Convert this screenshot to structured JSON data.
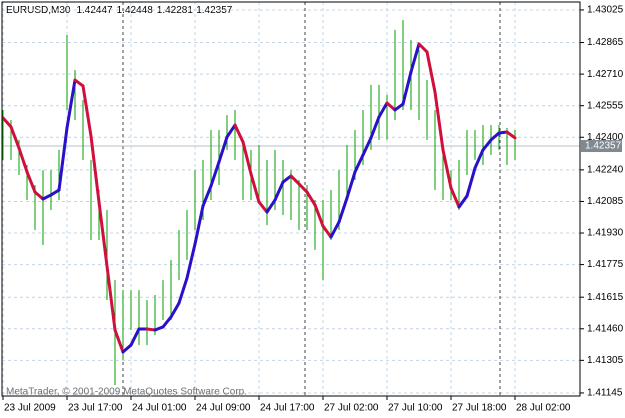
{
  "chart_data": {
    "type": "price-bars",
    "symbol": "EURUSD,M30",
    "ohlc": [
      1.42447,
      1.42448,
      1.42281,
      1.42357
    ],
    "footer": "MetaTrader, © 2001-2009 MetaQuotes Software Corp.",
    "current_price": 1.42357,
    "x": [
      0,
      2,
      4,
      6,
      8,
      10,
      12,
      14,
      16,
      18,
      20,
      22,
      24,
      26,
      28,
      30,
      32,
      34,
      36,
      38,
      40,
      42,
      44,
      46,
      48,
      50,
      52,
      54,
      56,
      58,
      60,
      62,
      64,
      66,
      68,
      70,
      72,
      74,
      76,
      78,
      80,
      82,
      84,
      86,
      88,
      90,
      92,
      94,
      96,
      98,
      100,
      102,
      104,
      106,
      108,
      110,
      112,
      114,
      116,
      118,
      120,
      122,
      124,
      126,
      128
    ],
    "high": [
      1.42534,
      1.42485,
      1.42387,
      1.42264,
      1.42166,
      1.42239,
      1.42239,
      1.42338,
      1.42902,
      1.4273,
      1.42583,
      1.42289,
      1.42141,
      1.42043,
      1.41699,
      1.4165,
      1.4165,
      1.4165,
      1.41601,
      1.41626,
      1.41699,
      1.41798,
      1.41945,
      1.42043,
      1.42239,
      1.42289,
      1.42436,
      1.42436,
      1.42509,
      1.42534,
      1.42387,
      1.42338,
      1.42362,
      1.42289,
      1.42338,
      1.42289,
      1.42239,
      1.4219,
      1.42166,
      1.42092,
      1.42092,
      1.42141,
      1.42239,
      1.42362,
      1.42436,
      1.42534,
      1.42657,
      1.42657,
      1.42608,
      1.42927,
      1.42976,
      1.42878,
      1.42829,
      1.42681,
      1.42534,
      1.42338,
      1.42239,
      1.42289,
      1.42436,
      1.42436,
      1.4246,
      1.4246,
      1.4246,
      1.42446,
      1.42436
    ],
    "low": [
      1.42289,
      1.42289,
      1.42215,
      1.42092,
      1.41945,
      1.41871,
      1.42043,
      1.42092,
      1.42534,
      1.42485,
      1.42289,
      1.41896,
      1.41896,
      1.41601,
      1.41184,
      1.41307,
      1.41454,
      1.4138,
      1.4138,
      1.41429,
      1.41503,
      1.41503,
      1.41699,
      1.41798,
      1.41945,
      1.41994,
      1.42092,
      1.42166,
      1.42338,
      1.42289,
      1.42092,
      1.42092,
      1.42092,
      1.41969,
      1.42043,
      1.42018,
      1.41994,
      1.41945,
      1.41945,
      1.41847,
      1.41699,
      1.41896,
      1.41945,
      1.42092,
      1.4219,
      1.42264,
      1.42338,
      1.42387,
      1.42387,
      1.42485,
      1.42534,
      1.42534,
      1.42485,
      1.42387,
      1.42141,
      1.42092,
      1.42092,
      1.42043,
      1.42215,
      1.42289,
      1.42264,
      1.42313,
      1.42338,
      1.42264,
      1.42289
    ],
    "bar_color": "#00a000",
    "ma": [
      1.42495,
      1.42451,
      1.42347,
      1.4223,
      1.42131,
      1.42097,
      1.42117,
      1.42141,
      1.42446,
      1.42681,
      1.42652,
      1.42406,
      1.42082,
      1.41768,
      1.41454,
      1.41346,
      1.4138,
      1.41459,
      1.41459,
      1.41454,
      1.41469,
      1.41518,
      1.41586,
      1.41709,
      1.41876,
      1.42063,
      1.42161,
      1.42279,
      1.42401,
      1.4246,
      1.42377,
      1.4222,
      1.42082,
      1.42033,
      1.42092,
      1.4218,
      1.4221,
      1.42171,
      1.42131,
      1.42068,
      1.41964,
      1.4191,
      1.41984,
      1.42102,
      1.4223,
      1.42313,
      1.42397,
      1.425,
      1.42568,
      1.42534,
      1.42563,
      1.42721,
      1.42858,
      1.42819,
      1.42622,
      1.42338,
      1.42151,
      1.42058,
      1.42112,
      1.42249,
      1.42338,
      1.42387,
      1.42421,
      1.42426,
      1.42397
    ],
    "ma_up_color": "#2a10c8",
    "ma_down_color": "#d0103c",
    "xlim": [
      -0.25,
      144.25
    ],
    "ylim": [
      1.4113,
      1.43064
    ],
    "yticks": [
      1.43025,
      1.42865,
      {
        "value": 1.4271,
        "label": "1.42710"
      },
      1.42555,
      {
        "value": 1.424,
        "label": "1.42400"
      },
      {
        "value": 1.4224,
        "label": "1.42240"
      },
      1.42085,
      {
        "value": 1.4193,
        "label": "1.41930"
      },
      1.41775,
      1.41615,
      {
        "value": 1.4146,
        "label": "1.41460"
      },
      1.41305,
      1.41145
    ],
    "xticks": [
      {
        "value": 0,
        "label": "23 Jul 2009"
      },
      {
        "value": 16,
        "label": "23 Jul 17:00"
      },
      {
        "value": 32,
        "label": "24 Jul 01:00"
      },
      {
        "value": 48,
        "label": "24 Jul 09:00"
      },
      {
        "value": 64,
        "label": "24 Jul 17:00"
      },
      {
        "value": 80,
        "label": "27 Jul 02:00"
      },
      {
        "value": 96,
        "label": "27 Jul 10:00"
      },
      {
        "value": 112,
        "label": "27 Jul 18:00"
      },
      {
        "value": 128,
        "label": "28 Jul 02:00"
      }
    ],
    "period_separators": [
      30,
      75.5,
      124.25
    ],
    "grid": true
  }
}
